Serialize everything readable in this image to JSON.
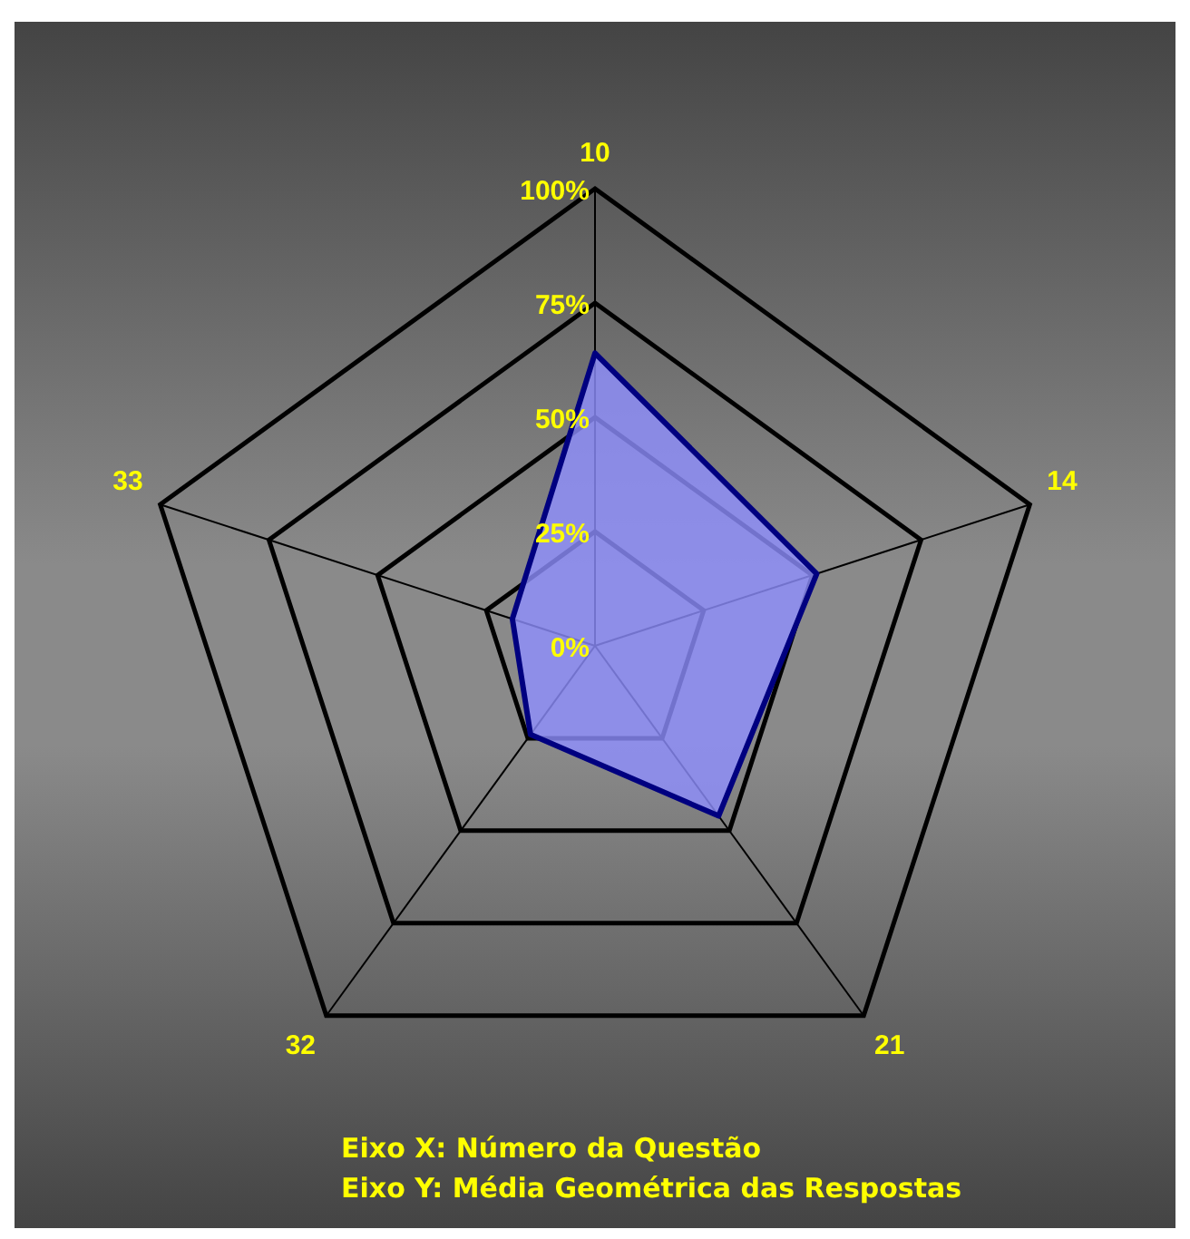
{
  "chart_data": {
    "type": "radar",
    "categories": [
      "10",
      "14",
      "21",
      "32",
      "33"
    ],
    "series": [
      {
        "color": "#000080",
        "values": [
          64,
          51,
          46,
          24,
          19
        ]
      }
    ],
    "ylim": [
      0,
      100
    ],
    "yticks": [
      {
        "value": 0,
        "label": "0%"
      },
      {
        "value": 25,
        "label": "25%"
      },
      {
        "value": 50,
        "label": "50%"
      },
      {
        "value": 75,
        "label": "75%"
      },
      {
        "value": 100,
        "label": "100%"
      }
    ],
    "grid": true,
    "legend": false,
    "marker": "none",
    "annotations": [
      "Eixo X: Número da Questão",
      "Eixo Y: Média Geométrica das Respostas"
    ]
  }
}
